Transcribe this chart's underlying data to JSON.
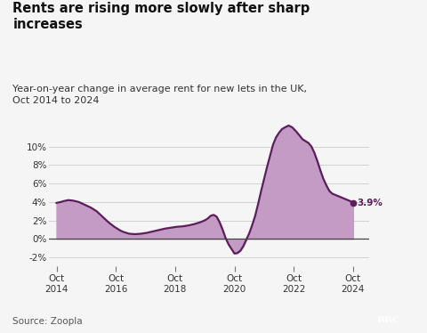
{
  "title": "Rents are rising more slowly after sharp\nincreases",
  "subtitle": "Year-on-year change in average rent for new lets in the UK,\nOct 2014 to 2024",
  "source": "Source: Zoopla",
  "line_color": "#5c1f5c",
  "fill_color": "#c49bc4",
  "background_color": "#f5f5f5",
  "label_color": "#5c1f5c",
  "last_label": "3.9%",
  "x_tick_years": [
    2014,
    2016,
    2018,
    2020,
    2022,
    2024
  ],
  "x_tick_labels": [
    "Oct\n2014",
    "Oct\n2016",
    "Oct\n2018",
    "Oct\n2020",
    "Oct\n2022",
    "Oct\n2024"
  ],
  "ylim": [
    -3.0,
    14.0
  ],
  "yticks": [
    -2,
    0,
    2,
    4,
    6,
    8,
    10
  ],
  "xlim": [
    2014.5,
    2025.3
  ],
  "data": [
    [
      2014.75,
      3.9
    ],
    [
      2014.9,
      4.0
    ],
    [
      2015.0,
      4.1
    ],
    [
      2015.15,
      4.2
    ],
    [
      2015.3,
      4.15
    ],
    [
      2015.5,
      4.0
    ],
    [
      2015.7,
      3.7
    ],
    [
      2015.9,
      3.4
    ],
    [
      2016.1,
      3.0
    ],
    [
      2016.3,
      2.4
    ],
    [
      2016.5,
      1.8
    ],
    [
      2016.7,
      1.3
    ],
    [
      2016.9,
      0.9
    ],
    [
      2017.0,
      0.75
    ],
    [
      2017.2,
      0.55
    ],
    [
      2017.4,
      0.5
    ],
    [
      2017.6,
      0.55
    ],
    [
      2017.8,
      0.65
    ],
    [
      2018.0,
      0.8
    ],
    [
      2018.2,
      0.95
    ],
    [
      2018.4,
      1.1
    ],
    [
      2018.6,
      1.2
    ],
    [
      2018.8,
      1.3
    ],
    [
      2019.0,
      1.35
    ],
    [
      2019.2,
      1.45
    ],
    [
      2019.4,
      1.6
    ],
    [
      2019.6,
      1.8
    ],
    [
      2019.75,
      2.0
    ],
    [
      2019.85,
      2.2
    ],
    [
      2019.95,
      2.5
    ],
    [
      2020.05,
      2.6
    ],
    [
      2020.15,
      2.4
    ],
    [
      2020.25,
      1.8
    ],
    [
      2020.35,
      1.0
    ],
    [
      2020.45,
      0.1
    ],
    [
      2020.55,
      -0.6
    ],
    [
      2020.65,
      -1.1
    ],
    [
      2020.75,
      -1.6
    ],
    [
      2020.85,
      -1.55
    ],
    [
      2020.95,
      -1.3
    ],
    [
      2021.05,
      -0.8
    ],
    [
      2021.15,
      -0.1
    ],
    [
      2021.25,
      0.6
    ],
    [
      2021.35,
      1.5
    ],
    [
      2021.45,
      2.5
    ],
    [
      2021.55,
      3.8
    ],
    [
      2021.65,
      5.2
    ],
    [
      2021.75,
      6.5
    ],
    [
      2021.85,
      7.8
    ],
    [
      2021.95,
      9.0
    ],
    [
      2022.05,
      10.2
    ],
    [
      2022.15,
      11.0
    ],
    [
      2022.25,
      11.5
    ],
    [
      2022.35,
      11.9
    ],
    [
      2022.45,
      12.1
    ],
    [
      2022.58,
      12.3
    ],
    [
      2022.7,
      12.1
    ],
    [
      2022.82,
      11.7
    ],
    [
      2022.95,
      11.2
    ],
    [
      2023.05,
      10.8
    ],
    [
      2023.15,
      10.6
    ],
    [
      2023.25,
      10.4
    ],
    [
      2023.35,
      10.0
    ],
    [
      2023.45,
      9.3
    ],
    [
      2023.55,
      8.4
    ],
    [
      2023.65,
      7.4
    ],
    [
      2023.75,
      6.5
    ],
    [
      2023.85,
      5.8
    ],
    [
      2023.95,
      5.2
    ],
    [
      2024.05,
      4.9
    ],
    [
      2024.2,
      4.7
    ],
    [
      2024.35,
      4.5
    ],
    [
      2024.5,
      4.3
    ],
    [
      2024.65,
      4.1
    ],
    [
      2024.75,
      3.9
    ]
  ]
}
